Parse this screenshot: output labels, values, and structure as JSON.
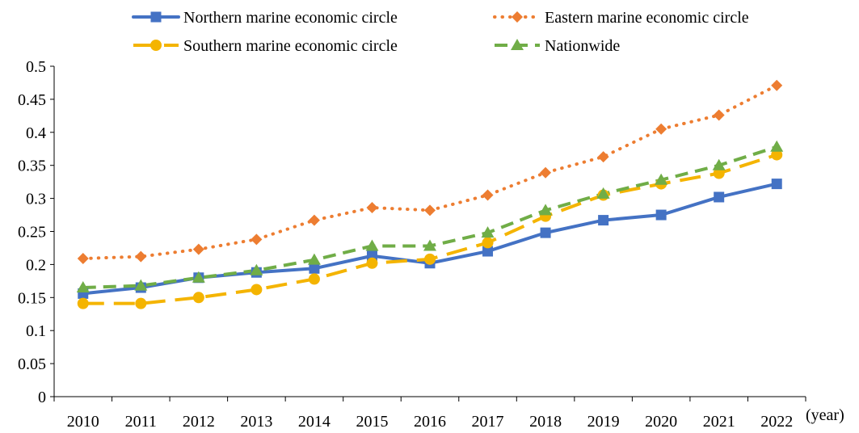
{
  "chart_data": {
    "type": "line",
    "title": "",
    "xlabel": "(year)",
    "ylabel": "",
    "ylim": [
      0,
      0.5
    ],
    "y_ticks": [
      "0",
      "0.05",
      "0.1",
      "0.15",
      "0.2",
      "0.25",
      "0.3",
      "0.35",
      "0.4",
      "0.45",
      "0.5"
    ],
    "y_tick_values": [
      0,
      0.05,
      0.1,
      0.15,
      0.2,
      0.25,
      0.3,
      0.35,
      0.4,
      0.45,
      0.5
    ],
    "categories": [
      "2010",
      "2011",
      "2012",
      "2013",
      "2014",
      "2015",
      "2016",
      "2017",
      "2018",
      "2019",
      "2020",
      "2021",
      "2022"
    ],
    "grid": false,
    "legend_position": "top",
    "series": [
      {
        "name": "Northern marine economic circle",
        "color": "#4472C4",
        "marker": "square",
        "line_style": "solid",
        "values": [
          0.156,
          0.165,
          0.18,
          0.188,
          0.194,
          0.213,
          0.202,
          0.22,
          0.248,
          0.267,
          0.275,
          0.302,
          0.322
        ]
      },
      {
        "name": "Eastern marine economic circle",
        "color": "#ED7D31",
        "marker": "diamond",
        "line_style": "dotted",
        "values": [
          0.209,
          0.212,
          0.223,
          0.238,
          0.267,
          0.286,
          0.282,
          0.305,
          0.339,
          0.363,
          0.405,
          0.426,
          0.471
        ]
      },
      {
        "name": "Southern marine economic circle",
        "color": "#F4B400",
        "marker": "circle",
        "line_style": "long-dash",
        "values": [
          0.141,
          0.141,
          0.15,
          0.162,
          0.178,
          0.202,
          0.208,
          0.233,
          0.273,
          0.305,
          0.322,
          0.338,
          0.366
        ]
      },
      {
        "name": "Nationwide",
        "color": "#70AD47",
        "marker": "triangle",
        "line_style": "dash",
        "values": [
          0.165,
          0.168,
          0.18,
          0.191,
          0.207,
          0.228,
          0.228,
          0.248,
          0.282,
          0.307,
          0.328,
          0.35,
          0.378
        ]
      }
    ]
  }
}
